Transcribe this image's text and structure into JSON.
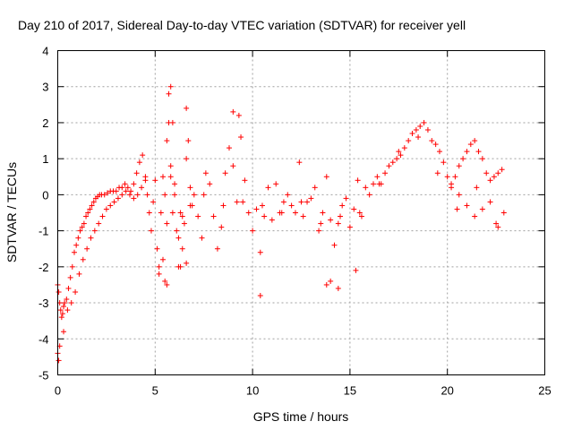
{
  "chart_data": {
    "type": "scatter",
    "title": "Day 210 of 2017, Sidereal Day-to-day VTEC variation (SDTVAR) for receiver yell",
    "xlabel": "GPS time / hours",
    "ylabel": "SDTVAR / TECUs",
    "xlim": [
      0,
      25
    ],
    "ylim": [
      -5,
      4
    ],
    "xticks": [
      "0",
      "5",
      "10",
      "15",
      "20",
      "25"
    ],
    "yticks": [
      "-5",
      "-4",
      "-3",
      "-2",
      "-1",
      "0",
      "1",
      "2",
      "3",
      "4"
    ],
    "grid": true,
    "marker": "+",
    "series": [
      {
        "name": "SDTVAR",
        "color": "#ff0000",
        "x": [
          0.0,
          0.05,
          0.1,
          0.15,
          0.2,
          0.25,
          0.3,
          0.35,
          0.45,
          0.55,
          0.65,
          0.75,
          0.85,
          0.95,
          1.05,
          1.15,
          1.25,
          1.35,
          1.45,
          1.55,
          1.65,
          1.75,
          1.85,
          1.95,
          2.05,
          2.15,
          2.25,
          2.4,
          2.55,
          2.7,
          2.85,
          3.0,
          3.15,
          3.3,
          3.45,
          3.6,
          3.75,
          3.9,
          4.05,
          4.2,
          4.35,
          4.5,
          4.6,
          4.7,
          4.8,
          4.9,
          5.0,
          5.1,
          5.2,
          5.3,
          5.4,
          5.5,
          5.6,
          5.7,
          5.8,
          5.9,
          6.0,
          6.1,
          6.2,
          6.3,
          6.4,
          6.5,
          6.6,
          6.7,
          6.8,
          6.9,
          7.0,
          7.2,
          7.4,
          7.6,
          7.8,
          8.0,
          8.2,
          8.4,
          8.6,
          8.8,
          9.0,
          9.2,
          9.4,
          9.6,
          9.8,
          10.0,
          10.2,
          10.4,
          10.6,
          10.8,
          11.0,
          11.2,
          11.4,
          11.6,
          11.8,
          12.0,
          12.2,
          12.4,
          12.6,
          12.8,
          13.0,
          13.2,
          13.4,
          13.6,
          13.8,
          14.0,
          14.2,
          14.4,
          14.6,
          14.8,
          15.0,
          15.2,
          15.4,
          15.6,
          15.8,
          16.0,
          16.2,
          16.4,
          16.6,
          16.8,
          17.0,
          17.2,
          17.4,
          17.6,
          17.8,
          18.0,
          18.2,
          18.4,
          18.6,
          18.8,
          19.0,
          19.2,
          19.4,
          19.6,
          19.8,
          20.0,
          20.2,
          20.4,
          20.6,
          20.8,
          21.0,
          21.2,
          21.4,
          21.6,
          21.8,
          22.0,
          22.2,
          22.4,
          22.6,
          22.8,
          0.1,
          0.3,
          0.5,
          0.7,
          0.9,
          1.1,
          1.3,
          1.5,
          1.7,
          1.9,
          2.1,
          2.3,
          2.5,
          2.7,
          2.9,
          3.1,
          3.3,
          3.5,
          3.7,
          3.9,
          4.1,
          4.3,
          4.5,
          5.2,
          5.4,
          5.6,
          5.8,
          6.0,
          6.2,
          6.4,
          6.6,
          6.8,
          7.5,
          8.5,
          9.5,
          10.5,
          11.5,
          12.5,
          13.5,
          14.5,
          15.5,
          16.5,
          17.5,
          18.5,
          19.5,
          20.5,
          21.5,
          22.5,
          20.2,
          20.6,
          21.0,
          21.4,
          21.8,
          22.2,
          22.6,
          22.9,
          5.7,
          5.8,
          6.6,
          9.0,
          9.3,
          5.5,
          5.6,
          5.9,
          6.3,
          13.8,
          14.0,
          14.4,
          10.4,
          15.3,
          0.05,
          0.0
        ],
        "y": [
          -2.5,
          -2.7,
          -3.0,
          -3.2,
          -3.4,
          -3.3,
          -3.1,
          -3.0,
          -2.9,
          -2.6,
          -2.3,
          -2.0,
          -1.6,
          -1.4,
          -1.2,
          -1.0,
          -0.9,
          -0.8,
          -0.6,
          -0.5,
          -0.4,
          -0.3,
          -0.2,
          -0.1,
          -0.05,
          0.0,
          0.0,
          0.0,
          0.05,
          0.1,
          0.1,
          0.1,
          0.2,
          0.2,
          0.3,
          0.2,
          0.1,
          0.3,
          0.6,
          0.9,
          1.1,
          0.5,
          0.0,
          -0.5,
          -1.0,
          -0.2,
          0.4,
          -1.5,
          -2.0,
          -0.5,
          0.5,
          0.0,
          1.5,
          2.0,
          0.5,
          -0.5,
          0.0,
          -1.0,
          -2.0,
          -0.5,
          -1.5,
          -0.8,
          1.0,
          1.5,
          0.2,
          -0.3,
          0.0,
          -0.6,
          -1.2,
          0.6,
          0.3,
          -0.6,
          -1.5,
          -0.9,
          0.6,
          1.3,
          0.8,
          -0.2,
          1.6,
          0.4,
          -0.5,
          -1.0,
          -0.4,
          -1.6,
          -0.6,
          0.2,
          -0.7,
          0.3,
          -0.5,
          -0.2,
          0.0,
          -0.3,
          -0.5,
          0.9,
          -0.6,
          -0.2,
          -0.1,
          0.2,
          -1.0,
          -0.5,
          0.5,
          -0.7,
          -1.4,
          -0.8,
          -0.3,
          -0.1,
          -0.9,
          -0.4,
          0.4,
          -0.6,
          0.2,
          0.0,
          0.3,
          0.5,
          0.3,
          0.6,
          0.8,
          0.9,
          1.0,
          1.1,
          1.3,
          1.5,
          1.7,
          1.8,
          1.9,
          2.0,
          1.8,
          1.5,
          1.4,
          1.2,
          0.9,
          0.5,
          0.2,
          0.5,
          0.8,
          1.0,
          1.2,
          1.4,
          1.5,
          1.2,
          1.0,
          0.6,
          0.4,
          0.5,
          0.6,
          0.7,
          -4.2,
          -3.8,
          -3.2,
          -3.0,
          -2.7,
          -2.2,
          -1.8,
          -1.5,
          -1.2,
          -1.0,
          -0.8,
          -0.6,
          -0.4,
          -0.3,
          -0.2,
          -0.1,
          0.0,
          0.1,
          0.0,
          -0.1,
          0.0,
          0.2,
          0.4,
          -2.2,
          -1.8,
          -0.8,
          0.8,
          0.3,
          -1.2,
          -0.6,
          -1.9,
          -0.3,
          0.0,
          -0.3,
          -0.2,
          -0.3,
          -0.5,
          -0.2,
          -0.8,
          -0.6,
          -0.5,
          0.3,
          1.2,
          1.6,
          0.6,
          -0.4,
          0.2,
          -0.8,
          0.3,
          0.0,
          -0.3,
          -0.6,
          -0.4,
          -0.2,
          -0.9,
          -0.5,
          2.8,
          3.0,
          2.4,
          2.3,
          2.2,
          -2.4,
          -2.5,
          2.0,
          -2.0,
          -2.5,
          -2.4,
          -2.6,
          -2.8,
          -2.1,
          -4.6,
          -4.4
        ]
      }
    ]
  }
}
